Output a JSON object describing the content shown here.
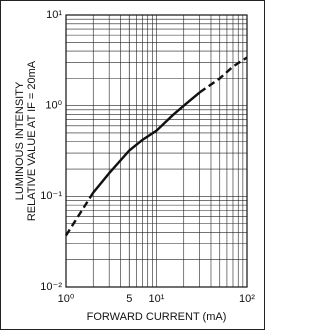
{
  "chart_data": {
    "type": "line",
    "x_label": "FORWARD CURRENT (mA)",
    "y_label": [
      "LUMINOUS INTENSITY",
      "RELATIVE VALUE AT IF = 20mA"
    ],
    "xlog": true,
    "ylog": true,
    "grid": true,
    "color": "#111",
    "xlim": [
      1,
      100
    ],
    "ylim": [
      0.01,
      10
    ],
    "xticks": [
      {
        "value": 1,
        "label": "10⁰"
      },
      5,
      {
        "value": 10,
        "label": "10¹"
      },
      {
        "value": 100,
        "label": "10²"
      }
    ],
    "yticks": [
      {
        "value": 0.01,
        "label": "10⁻²"
      },
      {
        "value": 0.1,
        "label": "10⁻¹"
      },
      {
        "value": 1,
        "label": "10⁰"
      },
      {
        "value": 10,
        "label": "10¹"
      }
    ],
    "series": [
      {
        "style": "dashed",
        "x": [
          1,
          1.5,
          2
        ],
        "values": [
          0.037,
          0.07,
          0.11
        ]
      },
      {
        "style": "solid",
        "x": [
          2,
          3,
          5,
          7,
          10,
          15,
          20,
          30
        ],
        "values": [
          0.11,
          0.18,
          0.32,
          0.42,
          0.53,
          0.78,
          1.0,
          1.4
        ]
      },
      {
        "style": "dashed",
        "x": [
          30,
          50,
          70,
          100
        ],
        "values": [
          1.4,
          2.0,
          2.7,
          3.4
        ]
      }
    ]
  }
}
